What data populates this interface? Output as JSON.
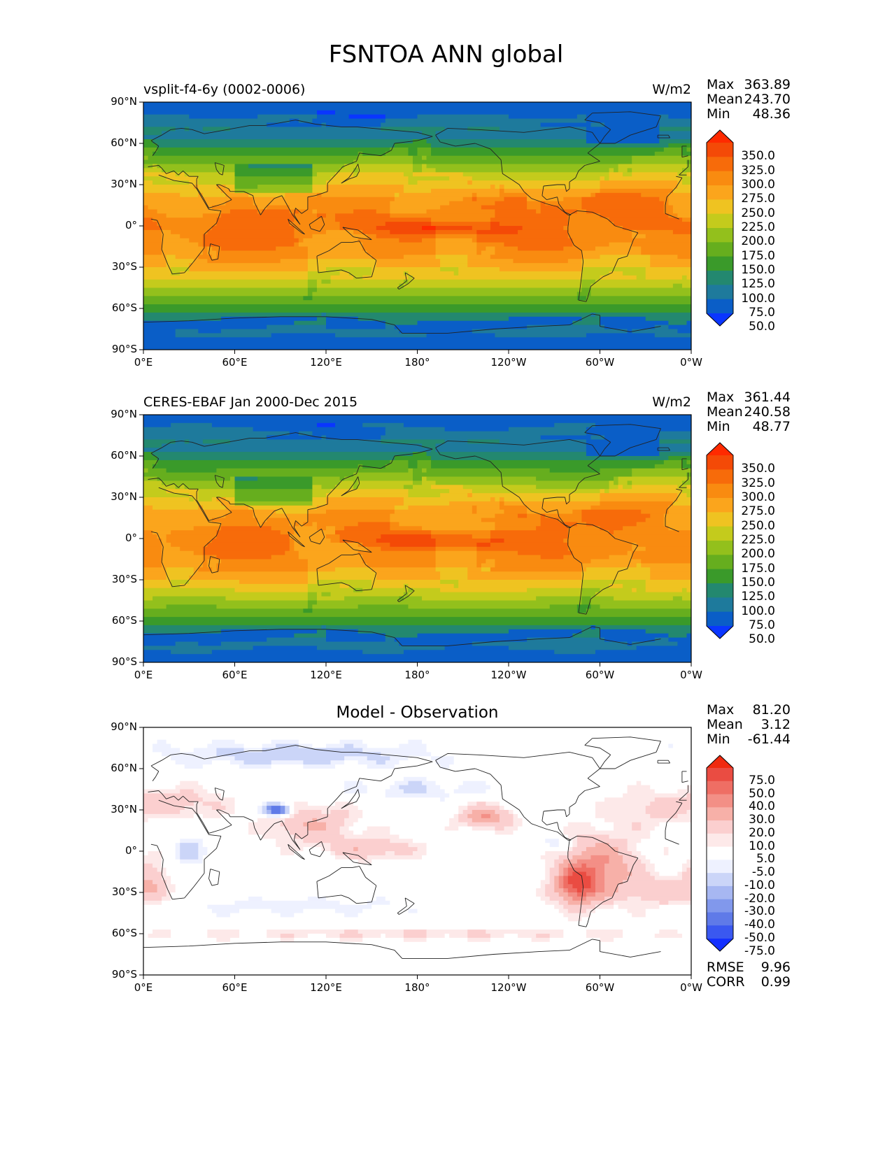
{
  "figure_title": "FSNTOA ANN global",
  "colors": {
    "abs_scale": [
      "#0a36ff",
      "#0a5ec7",
      "#1e7a9c",
      "#23886f",
      "#3a9a2a",
      "#66ae1e",
      "#93c01c",
      "#c4cb1c",
      "#efc321",
      "#fba51c",
      "#f98b10",
      "#f76b0a",
      "#f44a07",
      "#ff2a00"
    ],
    "diff_scale": [
      "#1430ff",
      "#3a58f0",
      "#5f7ae8",
      "#8198ec",
      "#a7b7f2",
      "#cbd5f8",
      "#eef1ff",
      "#ffffff",
      "#fde9e9",
      "#fbcfcf",
      "#f7b0a8",
      "#f38f86",
      "#ef6e64",
      "#ea4c42",
      "#f02a10"
    ],
    "coast": "#222222"
  },
  "chart_data": [
    {
      "type": "heatmap",
      "title": "vsplit-f4-6y (0002-0006)",
      "units": "W/m2",
      "stats": {
        "max_label": "Max",
        "max": "363.89",
        "mean_label": "Mean",
        "mean": "243.70",
        "min_label": "Min",
        "min": "48.36"
      },
      "xlim": [
        0,
        360
      ],
      "ylim": [
        -90,
        90
      ],
      "xticks": [
        "0°E",
        "60°E",
        "120°E",
        "180°",
        "120°W",
        "60°W",
        "0°W"
      ],
      "yticks": [
        "90°N",
        "60°N",
        "30°N",
        "0°",
        "30°S",
        "60°S",
        "90°S"
      ],
      "colorbar": {
        "levels": [
          "350.0",
          "325.0",
          "300.0",
          "275.0",
          "250.0",
          "225.0",
          "200.0",
          "175.0",
          "150.0",
          "125.0",
          "100.0",
          "75.0",
          "50.0"
        ],
        "scale": "abs_scale"
      },
      "field": {
        "equator_value": 300,
        "polar_value": 60,
        "warm_pool_peak": 355
      }
    },
    {
      "type": "heatmap",
      "title": "CERES-EBAF Jan 2000-Dec 2015",
      "units": "W/m2",
      "stats": {
        "max_label": "Max",
        "max": "361.44",
        "mean_label": "Mean",
        "mean": "240.58",
        "min_label": "Min",
        "min": "48.77"
      },
      "xlim": [
        0,
        360
      ],
      "ylim": [
        -90,
        90
      ],
      "xticks": [
        "0°E",
        "60°E",
        "120°E",
        "180°",
        "120°W",
        "60°W",
        "0°W"
      ],
      "yticks": [
        "90°N",
        "60°N",
        "30°N",
        "0°",
        "30°S",
        "60°S",
        "90°S"
      ],
      "colorbar": {
        "levels": [
          "350.0",
          "325.0",
          "300.0",
          "275.0",
          "250.0",
          "225.0",
          "200.0",
          "175.0",
          "150.0",
          "125.0",
          "100.0",
          "75.0",
          "50.0"
        ],
        "scale": "abs_scale"
      },
      "field": {
        "equator_value": 295,
        "polar_value": 62,
        "warm_pool_peak": 350
      }
    },
    {
      "type": "heatmap",
      "title": "Model - Observation",
      "units": "",
      "stats": {
        "max_label": "Max",
        "max": "81.20",
        "mean_label": "Mean",
        "mean": "3.12",
        "min_label": "Min",
        "min": "-61.44"
      },
      "extra_stats": {
        "rmse_label": "RMSE",
        "rmse": "9.96",
        "corr_label": "CORR",
        "corr": "0.99"
      },
      "xlim": [
        0,
        360
      ],
      "ylim": [
        -90,
        90
      ],
      "xticks": [
        "0°E",
        "60°E",
        "120°E",
        "180°",
        "120°W",
        "60°W",
        "0°W"
      ],
      "yticks": [
        "90°N",
        "60°N",
        "30°N",
        "0°",
        "30°S",
        "60°S",
        "90°S"
      ],
      "colorbar": {
        "levels": [
          "75.0",
          "50.0",
          "40.0",
          "30.0",
          "20.0",
          "10.0",
          "5.0",
          "-5.0",
          "-10.0",
          "-20.0",
          "-30.0",
          "-40.0",
          "-50.0",
          "-75.0"
        ],
        "scale": "diff_scale"
      }
    }
  ]
}
